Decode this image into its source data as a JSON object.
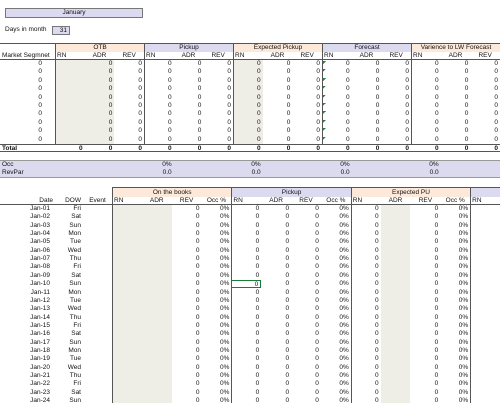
{
  "header": {
    "month": "January",
    "days_label": "Days in month",
    "days": "31"
  },
  "summary": {
    "groups": [
      "OTB",
      "Pickup",
      "Expected Pickup",
      "Forecast",
      "Varience to LW Forecast"
    ],
    "segment_label": "Market Segmnet",
    "subheaders": [
      "RN",
      "ADR",
      "REV",
      "RN",
      "ADR",
      "REV",
      "RN",
      "ADR",
      "REV",
      "RN",
      "ADR",
      "REV",
      "RN",
      "ADR",
      "REV"
    ],
    "rows": [
      [
        "0",
        null,
        "0",
        "0",
        "0",
        "0",
        "0",
        "0",
        "0",
        "0",
        "0",
        "0",
        "0",
        "0",
        "0",
        "0"
      ],
      [
        "0",
        null,
        "0",
        "0",
        "0",
        "0",
        "0",
        "0",
        "0",
        "0",
        "0",
        "0",
        "0",
        "0",
        "0",
        "0"
      ],
      [
        "0",
        null,
        "0",
        "0",
        "0",
        "0",
        "0",
        "0",
        "0",
        "0",
        "0",
        "0",
        "0",
        "0",
        "0",
        "0"
      ],
      [
        "0",
        null,
        "0",
        "0",
        "0",
        "0",
        "0",
        "0",
        "0",
        "0",
        "0",
        "0",
        "0",
        "0",
        "0",
        "0"
      ],
      [
        "0",
        null,
        "0",
        "0",
        "0",
        "0",
        "0",
        "0",
        "0",
        "0",
        "0",
        "0",
        "0",
        "0",
        "0",
        "0"
      ],
      [
        "0",
        null,
        "0",
        "0",
        "0",
        "0",
        "0",
        "0",
        "0",
        "0",
        "0",
        "0",
        "0",
        "0",
        "0",
        "0"
      ],
      [
        "0",
        null,
        "0",
        "0",
        "0",
        "0",
        "0",
        "0",
        "0",
        "0",
        "0",
        "0",
        "0",
        "0",
        "0",
        "0"
      ],
      [
        "0",
        null,
        "0",
        "0",
        "0",
        "0",
        "0",
        "0",
        "0",
        "0",
        "0",
        "0",
        "0",
        "0",
        "0",
        "0"
      ],
      [
        "0",
        null,
        "0",
        "0",
        "0",
        "0",
        "0",
        "0",
        "0",
        "0",
        "0",
        "0",
        "0",
        "0",
        "0",
        "0"
      ],
      [
        "0",
        null,
        "0",
        "0",
        "0",
        "0",
        "0",
        "0",
        "0",
        "0",
        "0",
        "0",
        "0",
        "0",
        "0",
        "0"
      ]
    ],
    "total": [
      "Total",
      "0",
      "0",
      "0",
      "0",
      "0",
      "0",
      "0",
      "0",
      "0",
      "0",
      "0",
      "0",
      "0",
      "0",
      "0"
    ]
  },
  "occupancy": {
    "occ_label": "Occ",
    "revpar_label": "RevPar",
    "occ": [
      "0%",
      "0%",
      "0%",
      "0%"
    ],
    "revpar": [
      "0.0",
      "0.0",
      "0.0",
      "0.0"
    ]
  },
  "daily": {
    "groups": [
      "On the books",
      "Pickup",
      "Expected PU"
    ],
    "subheaders": [
      "Date",
      "DOW",
      "Event",
      "RN",
      "ADR",
      "REV",
      "Occ %",
      "RN",
      "ADR",
      "REV",
      "Occ %",
      "RN",
      "ADR",
      "REV",
      "Occ %",
      "RN"
    ],
    "rows": [
      [
        "Jan-01",
        "Fri",
        null,
        null,
        null,
        "0",
        "0%",
        "0",
        "0",
        "0",
        "0%",
        "0",
        null,
        "0",
        "0%",
        null
      ],
      [
        "Jan-02",
        "Sat",
        null,
        null,
        null,
        "0",
        "0%",
        "0",
        "0",
        "0",
        "0%",
        "0",
        null,
        "0",
        "0%",
        null
      ],
      [
        "Jan-03",
        "Sun",
        null,
        null,
        null,
        "0",
        "0%",
        "0",
        "0",
        "0",
        "0%",
        "0",
        null,
        "0",
        "0%",
        null
      ],
      [
        "Jan-04",
        "Mon",
        null,
        null,
        null,
        "0",
        "0%",
        "0",
        "0",
        "0",
        "0%",
        "0",
        null,
        "0",
        "0%",
        null
      ],
      [
        "Jan-05",
        "Tue",
        null,
        null,
        null,
        "0",
        "0%",
        "0",
        "0",
        "0",
        "0%",
        "0",
        null,
        "0",
        "0%",
        null
      ],
      [
        "Jan-06",
        "Wed",
        null,
        null,
        null,
        "0",
        "0%",
        "0",
        "0",
        "0",
        "0%",
        "0",
        null,
        "0",
        "0%",
        null
      ],
      [
        "Jan-07",
        "Thu",
        null,
        null,
        null,
        "0",
        "0%",
        "0",
        "0",
        "0",
        "0%",
        "0",
        null,
        "0",
        "0%",
        null
      ],
      [
        "Jan-08",
        "Fri",
        null,
        null,
        null,
        "0",
        "0%",
        "0",
        "0",
        "0",
        "0%",
        "0",
        null,
        "0",
        "0%",
        null
      ],
      [
        "Jan-09",
        "Sat",
        null,
        null,
        null,
        "0",
        "0%",
        "0",
        "0",
        "0",
        "0%",
        "0",
        null,
        "0",
        "0%",
        null
      ],
      [
        "Jan-10",
        "Sun",
        null,
        null,
        null,
        "0",
        "0%",
        "0",
        "0",
        "0",
        "0%",
        "0",
        null,
        "0",
        "0%",
        null
      ],
      [
        "Jan-11",
        "Mon",
        null,
        null,
        null,
        "0",
        "0%",
        "0",
        "0",
        "0",
        "0%",
        "0",
        null,
        "0",
        "0%",
        null
      ],
      [
        "Jan-12",
        "Tue",
        null,
        null,
        null,
        "0",
        "0%",
        "0",
        "0",
        "0",
        "0%",
        "0",
        null,
        "0",
        "0%",
        null
      ],
      [
        "Jan-13",
        "Wed",
        null,
        null,
        null,
        "0",
        "0%",
        "0",
        "0",
        "0",
        "0%",
        "0",
        null,
        "0",
        "0%",
        null
      ],
      [
        "Jan-14",
        "Thu",
        null,
        null,
        null,
        "0",
        "0%",
        "0",
        "0",
        "0",
        "0%",
        "0",
        null,
        "0",
        "0%",
        null
      ],
      [
        "Jan-15",
        "Fri",
        null,
        null,
        null,
        "0",
        "0%",
        "0",
        "0",
        "0",
        "0%",
        "0",
        null,
        "0",
        "0%",
        null
      ],
      [
        "Jan-16",
        "Sat",
        null,
        null,
        null,
        "0",
        "0%",
        "0",
        "0",
        "0",
        "0%",
        "0",
        null,
        "0",
        "0%",
        null
      ],
      [
        "Jan-17",
        "Sun",
        null,
        null,
        null,
        "0",
        "0%",
        "0",
        "0",
        "0",
        "0%",
        "0",
        null,
        "0",
        "0%",
        null
      ],
      [
        "Jan-18",
        "Mon",
        null,
        null,
        null,
        "0",
        "0%",
        "0",
        "0",
        "0",
        "0%",
        "0",
        null,
        "0",
        "0%",
        null
      ],
      [
        "Jan-19",
        "Tue",
        null,
        null,
        null,
        "0",
        "0%",
        "0",
        "0",
        "0",
        "0%",
        "0",
        null,
        "0",
        "0%",
        null
      ],
      [
        "Jan-20",
        "Wed",
        null,
        null,
        null,
        "0",
        "0%",
        "0",
        "0",
        "0",
        "0%",
        "0",
        null,
        "0",
        "0%",
        null
      ],
      [
        "Jan-21",
        "Thu",
        null,
        null,
        null,
        "0",
        "0%",
        "0",
        "0",
        "0",
        "0%",
        "0",
        null,
        "0",
        "0%",
        null
      ],
      [
        "Jan-22",
        "Fri",
        null,
        null,
        null,
        "0",
        "0%",
        "0",
        "0",
        "0",
        "0%",
        "0",
        null,
        "0",
        "0%",
        null
      ],
      [
        "Jan-23",
        "Sat",
        null,
        null,
        null,
        "0",
        "0%",
        "0",
        "0",
        "0",
        "0%",
        "0",
        null,
        "0",
        "0%",
        null
      ],
      [
        "Jan-24",
        "Sun",
        null,
        null,
        null,
        "0",
        "0%",
        "0",
        "0",
        "0",
        "0%",
        "0",
        null,
        "0",
        "0%",
        null
      ]
    ]
  }
}
